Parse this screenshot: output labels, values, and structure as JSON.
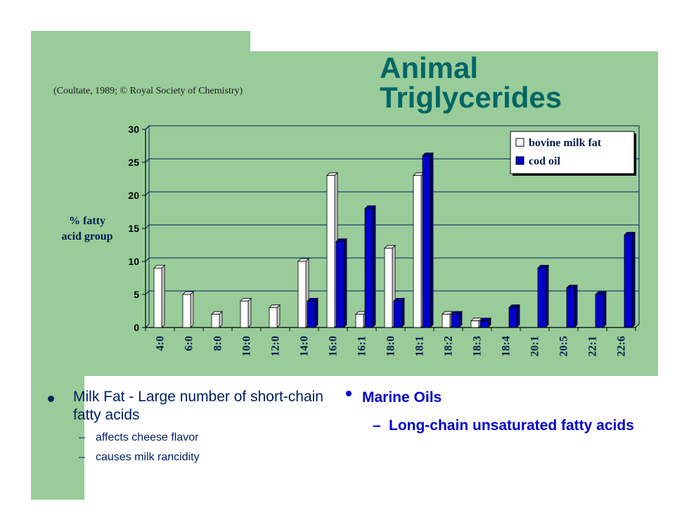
{
  "slide": {
    "title_line1": "Animal",
    "title_line2": "Triglycerides",
    "citation": "(Coultate, 1989; © Royal Society of Chemistry)",
    "bullets_left": {
      "main": "Milk Fat - Large number of short-chain fatty acids",
      "subs": [
        "affects cheese flavor",
        "causes milk rancidity"
      ]
    },
    "bullets_right": {
      "main": "Marine Oils",
      "sub": "Long-chain unsaturated fatty acids"
    }
  },
  "chart_data": {
    "type": "bar",
    "title": "",
    "xlabel": "",
    "ylabel_line1": "% fatty",
    "ylabel_line2": "acid group",
    "ylim": [
      0,
      30
    ],
    "yticks": [
      "0",
      "5",
      "10",
      "15",
      "20",
      "25",
      "30"
    ],
    "categories": [
      "4:0",
      "6:0",
      "8:0",
      "10:0",
      "12:0",
      "14:0",
      "16:0",
      "16:1",
      "18:0",
      "18:1",
      "18:2",
      "18:3",
      "18:4",
      "20:1",
      "20:5",
      "22:1",
      "22:6"
    ],
    "series": [
      {
        "name": "bovine milk fat",
        "color": "#ffffff",
        "values": [
          9,
          5,
          2,
          4,
          3,
          10,
          23,
          2,
          12,
          23,
          2,
          1,
          0,
          0,
          0,
          0,
          0
        ]
      },
      {
        "name": "cod oil",
        "color": "#0000cc",
        "values": [
          0,
          0,
          0,
          0,
          0,
          4,
          13,
          18,
          4,
          26,
          2,
          1,
          3,
          9,
          6,
          5,
          14
        ]
      }
    ],
    "grid": true,
    "legend_position": "top-right",
    "colors": {
      "background": "#99cc99",
      "gridline": "#002060",
      "title": "#006666"
    }
  }
}
